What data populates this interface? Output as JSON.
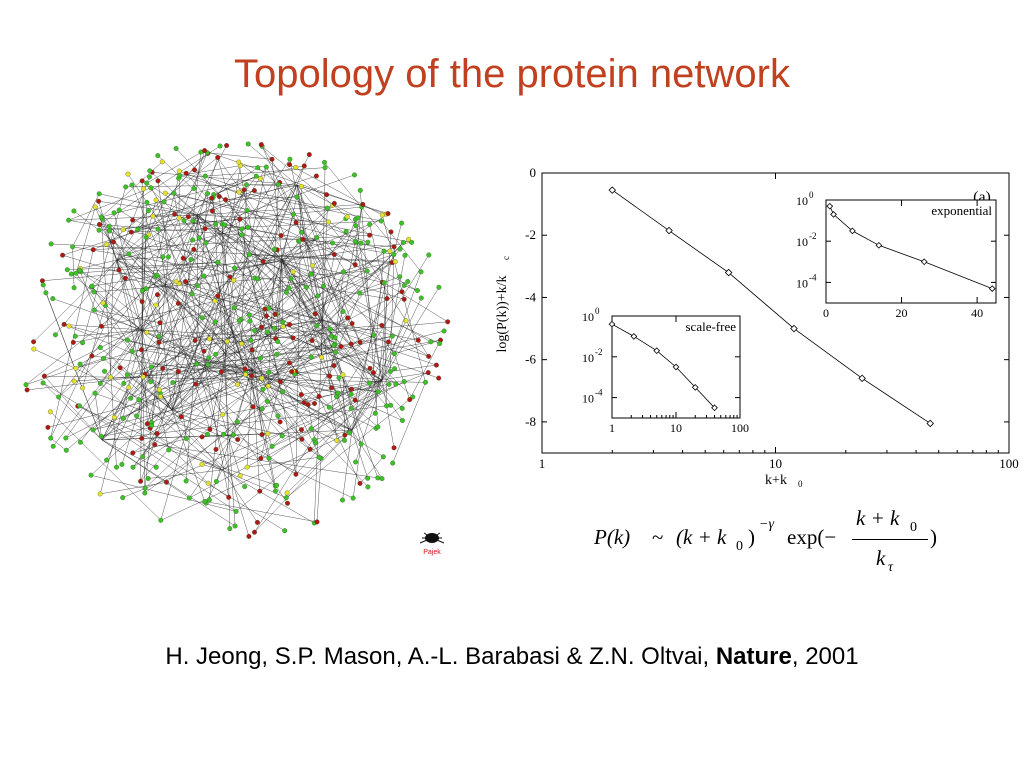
{
  "slide": {
    "title": "Topology of the protein network",
    "credit": "Pajek",
    "citation": {
      "authors": "H. Jeong, S.P. Mason, A.-L. Barabasi & Z.N. Oltvai, ",
      "journal": "Nature",
      "year": ", 2001"
    }
  },
  "network": {
    "node_colors": {
      "green": "#3fbf2a",
      "red": "#b01818",
      "yellow": "#e8e030",
      "edge": "#222222"
    }
  },
  "formula": {
    "lhs": "P(k)",
    "sim": "~",
    "base": "(k + k",
    "base_sub": "0",
    "base_close": ")",
    "exponent": "−γ",
    "exp_open": "exp(−",
    "numerator": "k + k",
    "numerator_sub": "0",
    "denominator": "k",
    "denominator_sub": "τ",
    "close": ")"
  },
  "chart_data": [
    {
      "type": "line",
      "panel_label": "(a)",
      "xlabel": "k+k",
      "xlabel_sub": "0",
      "ylabel": "log(P(k))+k/k",
      "ylabel_sub": "c",
      "xscale": "log",
      "xlim": [
        1,
        100
      ],
      "ylim": [
        -9,
        0
      ],
      "xticks": [
        "1",
        "10",
        "100"
      ],
      "yticks": [
        "0",
        "-2",
        "-4",
        "-6",
        "-8"
      ],
      "x": [
        2,
        3.5,
        6.3,
        12,
        23.5,
        46
      ],
      "y": [
        -0.55,
        -1.85,
        -3.2,
        -5.0,
        -6.6,
        -8.05
      ],
      "marker": "diamond"
    },
    {
      "type": "line",
      "label": "exponential",
      "xscale": "linear",
      "yscale": "log",
      "xlim": [
        0,
        45
      ],
      "ylim": [
        -5,
        0
      ],
      "xticks": [
        "0",
        "20",
        "40"
      ],
      "yticks": [
        "0",
        "-2",
        "-4"
      ],
      "ytick_base": "10",
      "x": [
        1,
        2,
        7,
        14,
        26,
        44
      ],
      "y": [
        -0.3,
        -0.7,
        -1.5,
        -2.2,
        -3.0,
        -4.3
      ],
      "marker": "diamond"
    },
    {
      "type": "line",
      "label": "scale-free",
      "xscale": "log",
      "yscale": "log",
      "xlim": [
        1,
        100
      ],
      "ylim": [
        -5,
        0
      ],
      "xticks": [
        "1",
        "10",
        "100"
      ],
      "yticks": [
        "0",
        "-2",
        "-4"
      ],
      "ytick_base": "10",
      "x": [
        1,
        2.2,
        5,
        10,
        20,
        40
      ],
      "y": [
        -0.4,
        -1.0,
        -1.7,
        -2.5,
        -3.5,
        -4.5
      ],
      "marker": "diamond"
    }
  ]
}
